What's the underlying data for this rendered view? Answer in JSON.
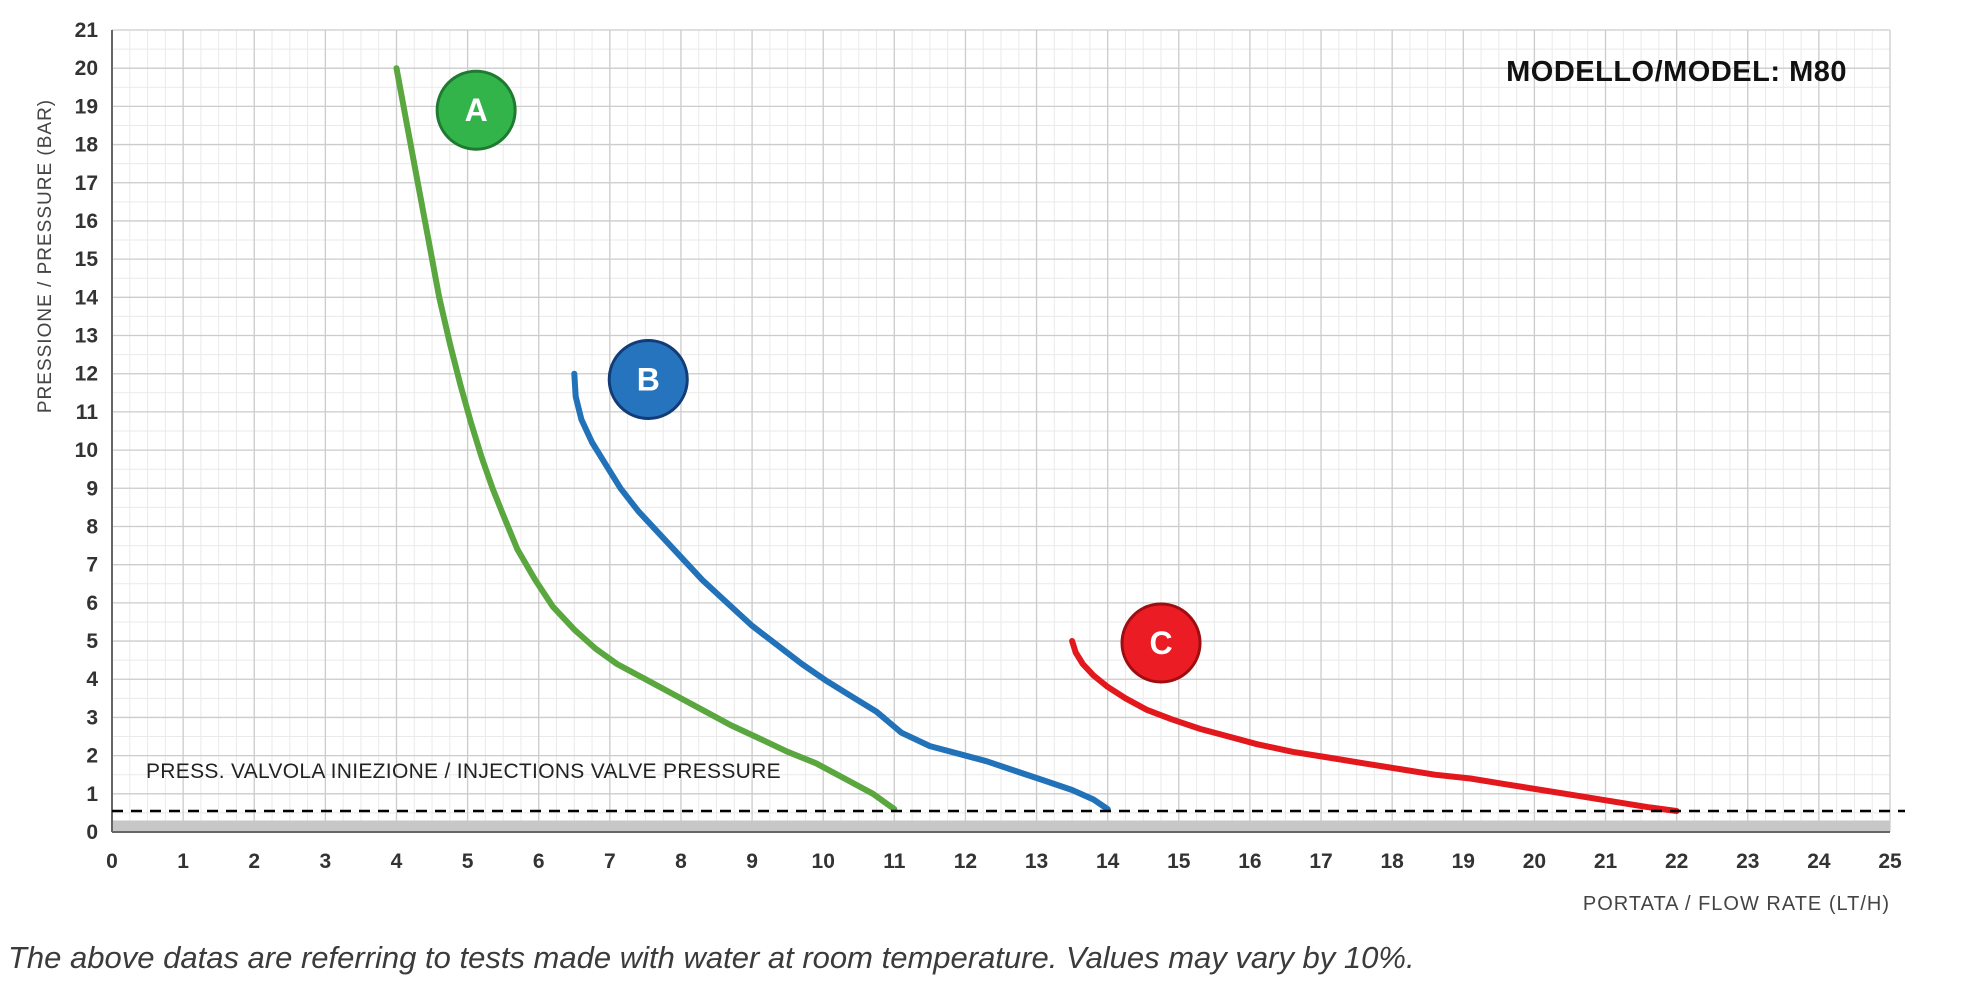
{
  "chart_data": {
    "type": "line",
    "title": "MODELLO/MODEL: M80",
    "xlabel": "PORTATA / FLOW RATE (LT/H)",
    "ylabel": "PRESSIONE / PRESSURE (BAR)",
    "xlim": [
      0,
      25
    ],
    "ylim": [
      0,
      21
    ],
    "xticks": [
      0,
      1,
      2,
      3,
      4,
      5,
      6,
      7,
      8,
      9,
      10,
      11,
      12,
      13,
      14,
      15,
      16,
      17,
      18,
      19,
      20,
      21,
      22,
      23,
      24,
      25
    ],
    "yticks": [
      0,
      1,
      2,
      3,
      4,
      5,
      6,
      7,
      8,
      9,
      10,
      11,
      12,
      13,
      14,
      15,
      16,
      17,
      18,
      19,
      20,
      21
    ],
    "grid": {
      "x_minor": 0.25,
      "y_minor": 0.5,
      "major_color": "#cccccc",
      "minor_color": "#eaeaea"
    },
    "annotation": {
      "label": "PRESS. VALVOLA INIEZIONE / INJECTIONS VALVE PRESSURE",
      "y": 0.55,
      "style": "dashed"
    },
    "series": [
      {
        "name": "A",
        "color": "#5aa73f",
        "badge": {
          "label": "A",
          "fill": "#33b44a",
          "border": "#1d7a30",
          "x": 5.12,
          "y": 18.9
        },
        "points": [
          [
            4.0,
            20.0
          ],
          [
            4.15,
            18.5
          ],
          [
            4.3,
            17.0
          ],
          [
            4.45,
            15.5
          ],
          [
            4.6,
            14.0
          ],
          [
            4.75,
            12.8
          ],
          [
            4.9,
            11.7
          ],
          [
            5.05,
            10.7
          ],
          [
            5.2,
            9.8
          ],
          [
            5.35,
            9.0
          ],
          [
            5.5,
            8.3
          ],
          [
            5.7,
            7.4
          ],
          [
            5.95,
            6.6
          ],
          [
            6.2,
            5.9
          ],
          [
            6.5,
            5.3
          ],
          [
            6.8,
            4.8
          ],
          [
            7.1,
            4.4
          ],
          [
            7.5,
            4.0
          ],
          [
            7.9,
            3.6
          ],
          [
            8.3,
            3.2
          ],
          [
            8.7,
            2.8
          ],
          [
            9.1,
            2.45
          ],
          [
            9.5,
            2.1
          ],
          [
            9.9,
            1.8
          ],
          [
            10.3,
            1.4
          ],
          [
            10.7,
            1.0
          ],
          [
            11.0,
            0.6
          ]
        ]
      },
      {
        "name": "B",
        "color": "#2272b9",
        "badge": {
          "label": "B",
          "fill": "#2574bd",
          "border": "#123c77",
          "x": 7.54,
          "y": 11.85
        },
        "points": [
          [
            6.5,
            12.0
          ],
          [
            6.52,
            11.4
          ],
          [
            6.6,
            10.8
          ],
          [
            6.75,
            10.2
          ],
          [
            6.95,
            9.6
          ],
          [
            7.15,
            9.0
          ],
          [
            7.4,
            8.4
          ],
          [
            7.65,
            7.9
          ],
          [
            7.95,
            7.3
          ],
          [
            8.3,
            6.6
          ],
          [
            8.65,
            6.0
          ],
          [
            9.0,
            5.4
          ],
          [
            9.35,
            4.9
          ],
          [
            9.7,
            4.4
          ],
          [
            10.05,
            3.95
          ],
          [
            10.4,
            3.55
          ],
          [
            10.75,
            3.15
          ],
          [
            11.1,
            2.6
          ],
          [
            11.5,
            2.25
          ],
          [
            11.9,
            2.05
          ],
          [
            12.3,
            1.85
          ],
          [
            12.7,
            1.6
          ],
          [
            13.1,
            1.35
          ],
          [
            13.5,
            1.1
          ],
          [
            13.8,
            0.85
          ],
          [
            14.0,
            0.6
          ]
        ]
      },
      {
        "name": "C",
        "color": "#e3181c",
        "badge": {
          "label": "C",
          "fill": "#ec1c24",
          "border": "#9e0d10",
          "x": 14.75,
          "y": 4.95
        },
        "points": [
          [
            13.5,
            5.0
          ],
          [
            13.55,
            4.7
          ],
          [
            13.65,
            4.4
          ],
          [
            13.8,
            4.1
          ],
          [
            14.0,
            3.8
          ],
          [
            14.25,
            3.5
          ],
          [
            14.55,
            3.2
          ],
          [
            14.9,
            2.95
          ],
          [
            15.3,
            2.7
          ],
          [
            15.7,
            2.5
          ],
          [
            16.1,
            2.3
          ],
          [
            16.6,
            2.1
          ],
          [
            17.1,
            1.95
          ],
          [
            17.6,
            1.8
          ],
          [
            18.1,
            1.65
          ],
          [
            18.6,
            1.5
          ],
          [
            19.1,
            1.4
          ],
          [
            19.6,
            1.25
          ],
          [
            20.1,
            1.1
          ],
          [
            20.6,
            0.95
          ],
          [
            21.1,
            0.8
          ],
          [
            21.6,
            0.65
          ],
          [
            22.0,
            0.55
          ]
        ]
      }
    ]
  },
  "footer": {
    "note": "The above datas are referring to tests made with water at room temperature. Values may vary by 10%."
  }
}
